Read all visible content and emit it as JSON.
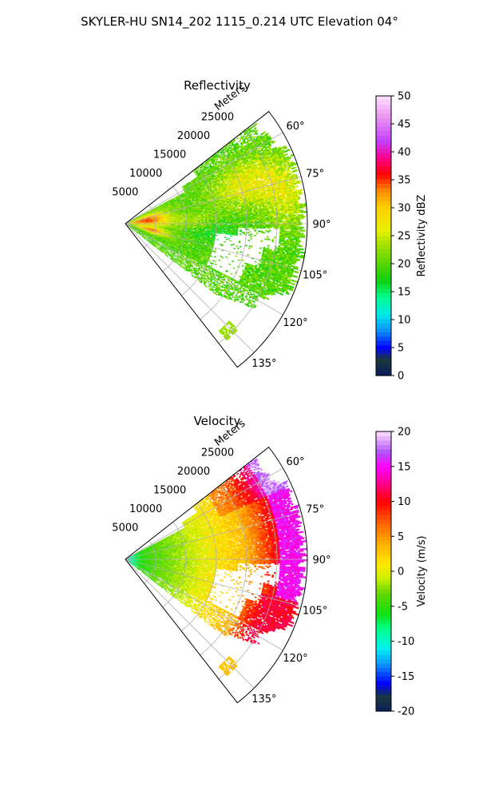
{
  "figure": {
    "suptitle": "SKYLER-HU  SN14_202  1115_0.214 UTC Elevation 04°"
  },
  "chart_data": [
    {
      "type": "heatmap",
      "subtype": "polar-sector",
      "title": "Reflectivity",
      "radial_axis_label": "Meters",
      "radial_ticks": [
        5000,
        10000,
        15000,
        20000,
        25000
      ],
      "radial_tick_labels": [
        "5000",
        "10000",
        "15000",
        "20000",
        "25000"
      ],
      "rlim": [
        0,
        30000
      ],
      "azimuth_range_deg": [
        52,
        142
      ],
      "angle_ticks_deg": [
        60,
        75,
        90,
        105,
        120,
        135
      ],
      "angle_tick_labels": [
        "60°",
        "75°",
        "90°",
        "105°",
        "120°",
        "135°"
      ],
      "grid": true,
      "colorbar": {
        "label": "Reflectivity dBZ",
        "range": [
          0,
          50
        ],
        "ticks": [
          0,
          5,
          10,
          15,
          20,
          25,
          30,
          35,
          40,
          45,
          50
        ],
        "tick_labels": [
          "0",
          "5",
          "10",
          "15",
          "20",
          "25",
          "30",
          "35",
          "40",
          "45",
          "50"
        ]
      },
      "colormap": {
        "name": "NWSRef-like",
        "stops": [
          {
            "value": 0,
            "color": "#0b1b5c"
          },
          {
            "value": 3,
            "color": "#1a3a3a"
          },
          {
            "value": 5,
            "color": "#0000ff"
          },
          {
            "value": 8,
            "color": "#0f8fff"
          },
          {
            "value": 11,
            "color": "#00e8e8"
          },
          {
            "value": 14,
            "color": "#00ff90"
          },
          {
            "value": 17,
            "color": "#10d010"
          },
          {
            "value": 20,
            "color": "#55d400"
          },
          {
            "value": 23,
            "color": "#9ae000"
          },
          {
            "value": 26,
            "color": "#e8f000"
          },
          {
            "value": 30,
            "color": "#ffd000"
          },
          {
            "value": 33,
            "color": "#ff9000"
          },
          {
            "value": 36,
            "color": "#ff0000"
          },
          {
            "value": 39,
            "color": "#ff0090"
          },
          {
            "value": 42,
            "color": "#c040ff"
          },
          {
            "value": 46,
            "color": "#e890f0"
          },
          {
            "value": 50,
            "color": "#ffe0ff"
          }
        ]
      },
      "field_summary": [
        {
          "region": "near radar, azimuth 70°–90°, range 0–7000 m",
          "value_dBZ": 36
        },
        {
          "region": "near radar, azimuth 100°–108°, range 3000–7000 m",
          "value_dBZ": 34
        },
        {
          "region": "northern band, azimuth 60°–85°, range 15000–27000 m",
          "value_dBZ": 28
        },
        {
          "region": "interior, azimuth 90°–110°, range 6000–30000 m",
          "value_dBZ": 22
        },
        {
          "region": "echo-free void, azimuth 95°–118°, range 14000–24000 m",
          "value_dBZ": null
        },
        {
          "region": "far isolated cell, azimuth 136°, range 24500 m",
          "value_dBZ": 24
        }
      ]
    },
    {
      "type": "heatmap",
      "subtype": "polar-sector",
      "title": "Velocity",
      "radial_axis_label": "Meters",
      "radial_ticks": [
        5000,
        10000,
        15000,
        20000,
        25000
      ],
      "radial_tick_labels": [
        "5000",
        "10000",
        "15000",
        "20000",
        "25000"
      ],
      "rlim": [
        0,
        30000
      ],
      "azimuth_range_deg": [
        52,
        142
      ],
      "angle_ticks_deg": [
        60,
        75,
        90,
        105,
        120,
        135
      ],
      "angle_tick_labels": [
        "60°",
        "75°",
        "90°",
        "105°",
        "120°",
        "135°"
      ],
      "grid": true,
      "colorbar": {
        "label": "Velocity (m/s)",
        "range": [
          -20,
          20
        ],
        "ticks": [
          -20,
          -15,
          -10,
          -5,
          0,
          5,
          10,
          15,
          20
        ],
        "tick_labels": [
          "-20",
          "-15",
          "-10",
          "-5",
          "0",
          "5",
          "10",
          "15",
          "20"
        ]
      },
      "colormap": {
        "name": "NWSVel-like",
        "stops": [
          {
            "value": -20,
            "color": "#0b1b5c"
          },
          {
            "value": -18,
            "color": "#1a3a3a"
          },
          {
            "value": -16,
            "color": "#0000ff"
          },
          {
            "value": -13,
            "color": "#0fa0ff"
          },
          {
            "value": -11,
            "color": "#00f0f0"
          },
          {
            "value": -8,
            "color": "#00ff80"
          },
          {
            "value": -6,
            "color": "#10e010"
          },
          {
            "value": -3,
            "color": "#6ad800"
          },
          {
            "value": -1,
            "color": "#c8f000"
          },
          {
            "value": 1,
            "color": "#ffe800"
          },
          {
            "value": 4,
            "color": "#ffb000"
          },
          {
            "value": 7,
            "color": "#ff6000"
          },
          {
            "value": 10,
            "color": "#ff0000"
          },
          {
            "value": 13,
            "color": "#ff00a0"
          },
          {
            "value": 15,
            "color": "#ff00ff"
          },
          {
            "value": 17,
            "color": "#b050ff"
          },
          {
            "value": 20,
            "color": "#ffe0ff"
          }
        ]
      },
      "field_summary": [
        {
          "region": "near radar, range 0–3000 m",
          "value_ms": -10
        },
        {
          "region": "inner ring, range 3000–12000 m",
          "value_ms": -4
        },
        {
          "region": "middle ring, range 12000–20000 m",
          "value_ms": 1
        },
        {
          "region": "outer ring, range 20000–26000 m",
          "value_ms": 9
        },
        {
          "region": "edge, azimuth 60°–100°, range 26000–30000 m",
          "value_ms": 15
        },
        {
          "region": "echo-free void, azimuth 95°–118°, range 14000–24000 m",
          "value_ms": null
        }
      ]
    }
  ]
}
